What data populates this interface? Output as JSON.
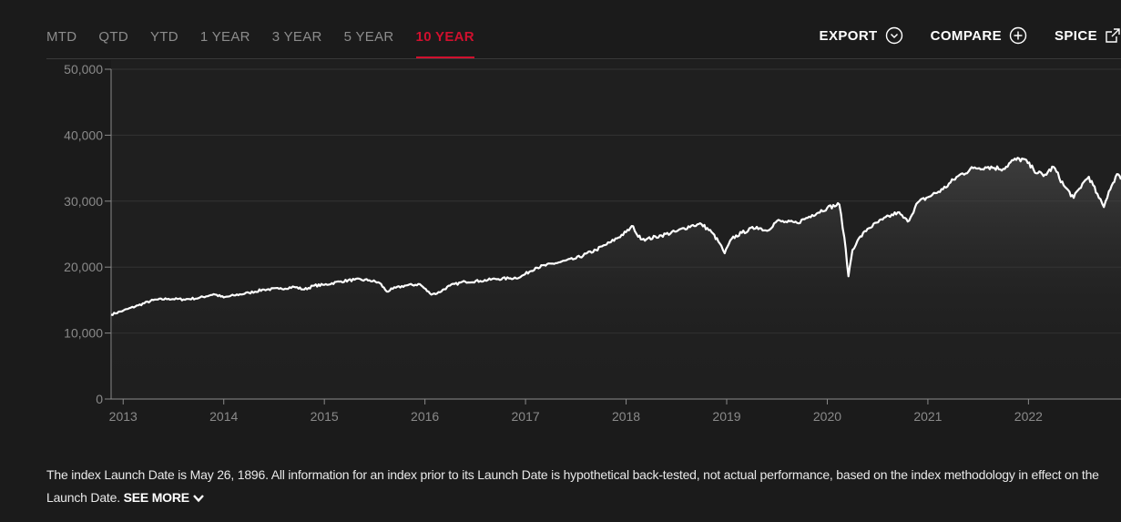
{
  "tabs": [
    {
      "label": "MTD",
      "active": false
    },
    {
      "label": "QTD",
      "active": false
    },
    {
      "label": "YTD",
      "active": false
    },
    {
      "label": "1 YEAR",
      "active": false
    },
    {
      "label": "3 YEAR",
      "active": false
    },
    {
      "label": "5 YEAR",
      "active": false
    },
    {
      "label": "10 YEAR",
      "active": true
    }
  ],
  "actions": {
    "export_label": "EXPORT",
    "compare_label": "COMPARE",
    "spice_label": "SPICE"
  },
  "footnote": {
    "text": "The index Launch Date is May 26, 1896. All information for an index prior to its Launch Date is hypothetical back-tested, not actual performance, based on the index methodology in effect on the Launch Date.",
    "see_more_label": "SEE MORE"
  },
  "colors": {
    "accent": "#d0102e",
    "line": "#ffffff",
    "background": "#1b1b1b",
    "plot_background": "#1f1f1f"
  },
  "chart_data": {
    "type": "area",
    "title": "",
    "xlabel": "",
    "ylabel": "",
    "ylim": [
      0,
      50000
    ],
    "yticks": [
      0,
      10000,
      20000,
      30000,
      40000,
      50000
    ],
    "ytick_labels": [
      "0",
      "10,000",
      "20,000",
      "30,000",
      "40,000",
      "50,000"
    ],
    "xlim": [
      2012.88,
      2022.92
    ],
    "xticks": [
      2013,
      2014,
      2015,
      2016,
      2017,
      2018,
      2019,
      2020,
      2021,
      2022
    ],
    "xtick_labels": [
      "2013",
      "2014",
      "2015",
      "2016",
      "2017",
      "2018",
      "2019",
      "2020",
      "2021",
      "2022"
    ],
    "grid": true,
    "legend": "none",
    "series": [
      {
        "x": [
          2012.88,
          2013.0,
          2013.15,
          2013.3,
          2013.45,
          2013.6,
          2013.75,
          2013.9,
          2014.0,
          2014.1,
          2014.25,
          2014.4,
          2014.55,
          2014.7,
          2014.8,
          2014.9,
          2015.0,
          2015.15,
          2015.3,
          2015.45,
          2015.55,
          2015.62,
          2015.68,
          2015.8,
          2015.95,
          2016.05,
          2016.12,
          2016.25,
          2016.4,
          2016.55,
          2016.7,
          2016.85,
          2016.95,
          2017.1,
          2017.3,
          2017.5,
          2017.7,
          2017.85,
          2018.0,
          2018.07,
          2018.12,
          2018.2,
          2018.35,
          2018.5,
          2018.65,
          2018.75,
          2018.85,
          2018.93,
          2018.98,
          2019.05,
          2019.15,
          2019.3,
          2019.4,
          2019.5,
          2019.6,
          2019.7,
          2019.85,
          2020.0,
          2020.12,
          2020.17,
          2020.21,
          2020.25,
          2020.3,
          2020.4,
          2020.55,
          2020.7,
          2020.8,
          2020.9,
          2021.0,
          2021.15,
          2021.3,
          2021.45,
          2021.6,
          2021.75,
          2021.85,
          2021.95,
          2022.05,
          2022.15,
          2022.25,
          2022.35,
          2022.45,
          2022.55,
          2022.6,
          2022.7,
          2022.75,
          2022.8,
          2022.88,
          2022.92
        ],
        "values": [
          12800,
          13400,
          14200,
          15000,
          15200,
          15100,
          15300,
          15900,
          15400,
          15700,
          16100,
          16600,
          16700,
          17000,
          16600,
          17200,
          17300,
          17800,
          18100,
          18000,
          17600,
          16300,
          16700,
          17200,
          17400,
          16000,
          16000,
          17200,
          17800,
          17900,
          18200,
          18300,
          18500,
          19900,
          20600,
          21300,
          22600,
          23800,
          25300,
          26200,
          24600,
          24200,
          24800,
          25400,
          26300,
          26500,
          25300,
          23600,
          22100,
          24300,
          25200,
          26100,
          25500,
          27000,
          26800,
          26700,
          27900,
          29000,
          29500,
          24500,
          18600,
          22600,
          24000,
          25800,
          27200,
          28300,
          26900,
          29800,
          30600,
          31800,
          33800,
          35000,
          35200,
          34900,
          36200,
          36400,
          34800,
          33800,
          35200,
          32400,
          30500,
          32900,
          33700,
          30500,
          29100,
          31500,
          34100,
          33300
        ]
      }
    ]
  }
}
